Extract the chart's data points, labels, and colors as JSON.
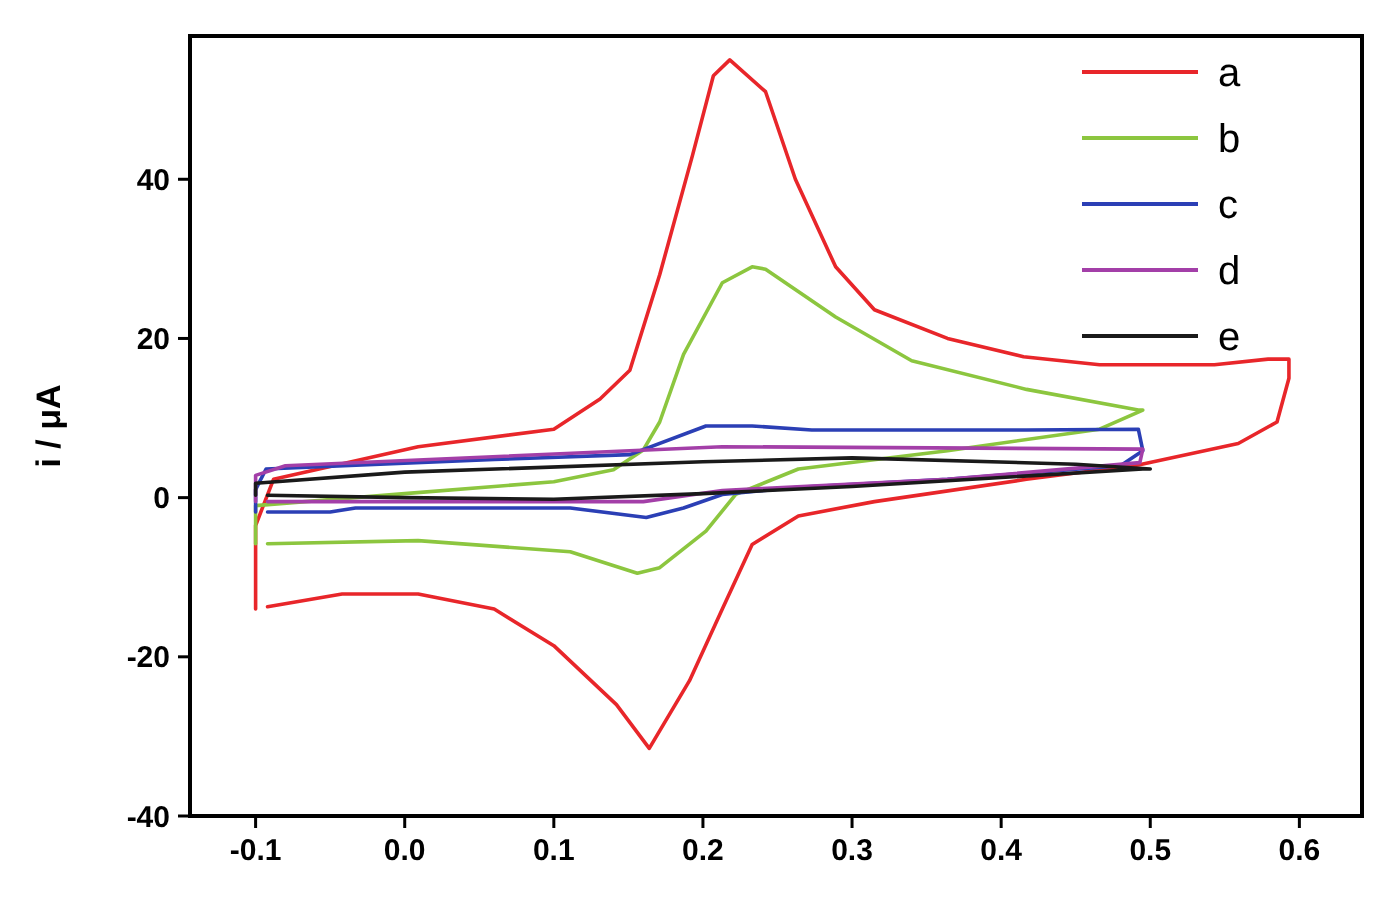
{
  "chart_data": {
    "type": "line",
    "ylabel": "i / μA",
    "xlim": [
      -0.144,
      0.642
    ],
    "ylim": [
      -40,
      58
    ],
    "xticks": [
      -0.1,
      {
        "value": 0,
        "label": "0.0"
      },
      0.1,
      0.2,
      0.3,
      0.4,
      0.5,
      0.6
    ],
    "yticks": [
      -40,
      -20,
      0,
      20,
      40
    ],
    "legend": "top right",
    "grid": false,
    "marker": "none",
    "line_style": "solid",
    "series": [
      {
        "name": "a",
        "color": "#e8262a",
        "x": [
          -0.1,
          -0.1,
          -0.088,
          0.009,
          0.1,
          0.131,
          0.151,
          0.171,
          0.193,
          0.207,
          0.218,
          0.242,
          0.262,
          0.289,
          0.315,
          0.364,
          0.415,
          0.466,
          0.543,
          0.579,
          0.593,
          0.593,
          0.585,
          0.559,
          0.492,
          0.417,
          0.315,
          0.264,
          0.233,
          0.213,
          0.191,
          0.164,
          0.142,
          0.1,
          0.06,
          0.009,
          -0.042,
          -0.092
        ],
        "values": [
          -14,
          -3.5,
          2.3,
          6.4,
          8.6,
          12.4,
          16,
          28,
          43,
          53,
          55,
          51,
          40,
          29,
          23.6,
          20,
          17.7,
          16.7,
          16.7,
          17.4,
          17.4,
          15,
          9.5,
          6.8,
          4.1,
          2.3,
          -0.5,
          -2.3,
          -5.9,
          -14,
          -23,
          -31.5,
          -26,
          -18.6,
          -14,
          -12.1,
          -12.1,
          -13.7
        ]
      },
      {
        "name": "b",
        "color": "#8cc63f",
        "x": [
          -0.1,
          -0.1,
          0.0,
          0.1,
          0.14,
          0.16,
          0.171,
          0.187,
          0.213,
          0.233,
          0.242,
          0.289,
          0.34,
          0.417,
          0.492,
          0.495,
          0.466,
          0.364,
          0.264,
          0.222,
          0.202,
          0.171,
          0.156,
          0.111,
          0.009,
          -0.092
        ],
        "values": [
          -5.8,
          -1,
          0.5,
          2,
          3.5,
          6,
          9.5,
          18,
          27,
          29,
          28.7,
          22.7,
          17.2,
          13.6,
          11,
          11,
          8.6,
          5.9,
          3.6,
          0.4,
          -4.2,
          -8.8,
          -9.5,
          -6.8,
          -5.4,
          -5.8
        ]
      },
      {
        "name": "c",
        "color": "#2b3fb5",
        "x": [
          -0.1,
          -0.1,
          -0.093,
          0.06,
          0.151,
          0.202,
          0.233,
          0.273,
          0.417,
          0.492,
          0.495,
          0.48,
          0.364,
          0.264,
          0.213,
          0.187,
          0.162,
          0.111,
          -0.033,
          -0.05,
          -0.092
        ],
        "values": [
          -1.8,
          1,
          3.6,
          4.8,
          5.4,
          9,
          9,
          8.5,
          8.5,
          8.6,
          5.9,
          4,
          2.3,
          1.3,
          0.4,
          -1.3,
          -2.5,
          -1.3,
          -1.3,
          -1.8,
          -1.8
        ]
      },
      {
        "name": "d",
        "color": "#a33fa8",
        "x": [
          -0.1,
          -0.1,
          -0.08,
          0.213,
          0.495,
          0.493,
          0.364,
          0.213,
          0.16,
          0.111,
          -0.05,
          -0.092
        ],
        "values": [
          -0.5,
          2.8,
          4,
          6.4,
          6.1,
          4.4,
          2.3,
          0.9,
          -0.5,
          -0.5,
          -0.5,
          -0.5
        ]
      },
      {
        "name": "e",
        "color": "#1a1a1a",
        "x": [
          -0.1,
          -0.1,
          0.0,
          0.2,
          0.3,
          0.45,
          0.5,
          0.495,
          0.3,
          0.2,
          0.1,
          0.0,
          -0.092
        ],
        "values": [
          0.3,
          1.8,
          3.2,
          4.5,
          5,
          4.2,
          3.6,
          3.6,
          1.4,
          0.5,
          -0.2,
          0,
          0.3
        ]
      }
    ]
  }
}
